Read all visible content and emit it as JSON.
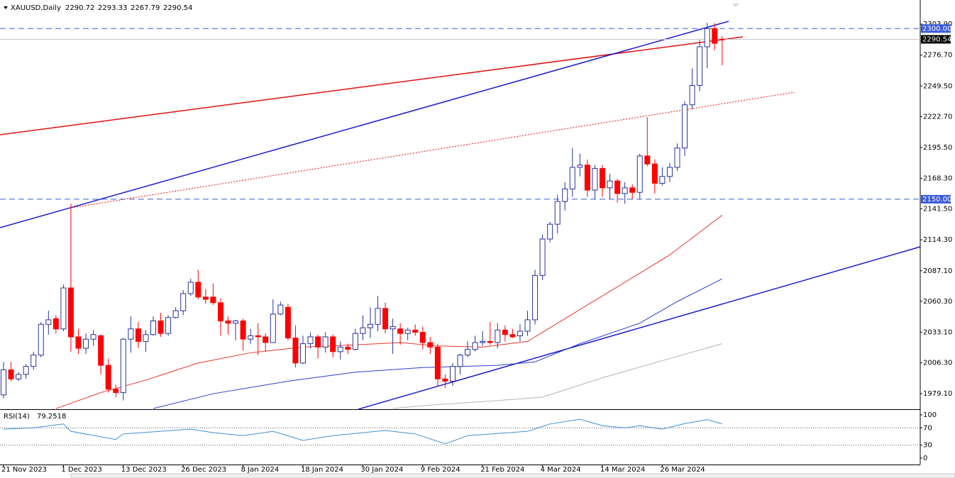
{
  "chart_data": {
    "type": "candlestick",
    "title": "XAUUSD,Daily",
    "categories": [
      "21 Nov 2023",
      null,
      null,
      null,
      null,
      null,
      null,
      null,
      "1 Dec 2023",
      null,
      null,
      null,
      null,
      null,
      null,
      null,
      "13 Dec 2023",
      null,
      null,
      null,
      null,
      null,
      null,
      null,
      "26 Dec 2023",
      null,
      null,
      null,
      null,
      null,
      null,
      null,
      "8 Jan 2024",
      null,
      null,
      null,
      null,
      null,
      null,
      null,
      "18 Jan 2024",
      null,
      null,
      null,
      null,
      null,
      null,
      null,
      "30 Jan 2024",
      null,
      null,
      null,
      null,
      null,
      null,
      null,
      "9 Feb 2024",
      null,
      null,
      null,
      null,
      null,
      null,
      null,
      "21 Feb 2024",
      null,
      null,
      null,
      null,
      null,
      null,
      null,
      "4 Mar 2024",
      null,
      null,
      null,
      null,
      null,
      null,
      null,
      "14 Mar 2024",
      null,
      null,
      null,
      null,
      null,
      null,
      null,
      "26 Mar 2024",
      null,
      null,
      null,
      null,
      null,
      null,
      null,
      null
    ],
    "open": [
      1978,
      2000,
      1992,
      1996,
      2003,
      2013,
      2040,
      2045,
      2036,
      2072,
      2029,
      2019,
      2027,
      2030,
      2004,
      1983,
      1980,
      2027,
      2036,
      2025,
      2031,
      2043,
      2032,
      2046,
      2052,
      2067,
      2077,
      2064,
      2064,
      2059,
      2043,
      2041,
      2043,
      2027,
      2030,
      2029,
      2024,
      2049,
      2055,
      2028,
      2006,
      2023,
      2029,
      2020,
      2029,
      2016,
      2020,
      2018,
      2032,
      2037,
      2040,
      2054,
      2036,
      2036,
      2032,
      2035,
      2033,
      2024,
      2020,
      1992,
      1990,
      2003,
      2013,
      2018,
      2024,
      2025,
      2024,
      2035,
      2031,
      2030,
      2034,
      2044,
      2083,
      2115,
      2128,
      2148,
      2159,
      2178,
      2180,
      2158,
      2177,
      2160,
      2166,
      2155,
      2160,
      2156,
      2188,
      2181,
      2164,
      2170,
      2178,
      2195,
      2233,
      2250,
      2284,
      2300,
      2290.72
    ],
    "high": [
      2007,
      2007,
      1998,
      2005,
      2016,
      2042,
      2052,
      2048,
      2075,
      2146,
      2036,
      2032,
      2035,
      2031,
      2010,
      1987,
      2028,
      2047,
      2042,
      2035,
      2047,
      2050,
      2048,
      2055,
      2070,
      2080,
      2088,
      2071,
      2076,
      2063,
      2047,
      2044,
      2045,
      2036,
      2041,
      2032,
      2062,
      2060,
      2058,
      2039,
      2030,
      2033,
      2031,
      2033,
      2031,
      2025,
      2023,
      2036,
      2048,
      2055,
      2065,
      2059,
      2045,
      2041,
      2037,
      2040,
      2038,
      2029,
      2023,
      1996,
      2006,
      2014,
      2025,
      2030,
      2034,
      2042,
      2041,
      2039,
      2036,
      2040,
      2052,
      2088,
      2119,
      2130,
      2154,
      2165,
      2195,
      2190,
      2185,
      2180,
      2180,
      2172,
      2168,
      2165,
      2163,
      2190,
      2222,
      2185,
      2178,
      2182,
      2199,
      2236,
      2265,
      2290,
      2305,
      2305,
      2293.33
    ],
    "low": [
      1975,
      1990,
      1990,
      1992,
      2000,
      2011,
      2031,
      2032,
      2034,
      2016,
      2014,
      2014,
      2021,
      1996,
      1980,
      1976,
      1973,
      2015,
      2019,
      2016,
      2030,
      2029,
      2030,
      2045,
      2048,
      2065,
      2062,
      2058,
      2057,
      2030,
      2031,
      2026,
      2017,
      2023,
      2013,
      2016,
      2024,
      2048,
      2026,
      2002,
      2005,
      2019,
      2010,
      2015,
      2011,
      2009,
      2014,
      2017,
      2026,
      2028,
      2034,
      2032,
      2014,
      2022,
      2026,
      2030,
      2018,
      2014,
      1985,
      1984,
      1986,
      1996,
      2011,
      2016,
      2021,
      2022,
      2019,
      2025,
      2028,
      2025,
      2030,
      2040,
      2079,
      2112,
      2120,
      2140,
      2152,
      2170,
      2152,
      2150,
      2152,
      2150,
      2147,
      2146,
      2150,
      2150,
      2179,
      2155,
      2162,
      2165,
      2175,
      2188,
      2229,
      2245,
      2265,
      2281,
      2267.79
    ],
    "close": [
      2000,
      1992,
      1996,
      2003,
      2013,
      2040,
      2044,
      2036,
      2072,
      2029,
      2019,
      2027,
      2031,
      2004,
      1983,
      1980,
      2027,
      2036,
      2025,
      2031,
      2043,
      2032,
      2046,
      2052,
      2067,
      2077,
      2064,
      2062,
      2059,
      2043,
      2041,
      2043,
      2027,
      2030,
      2029,
      2024,
      2049,
      2057,
      2028,
      2006,
      2023,
      2029,
      2020,
      2029,
      2016,
      2020,
      2018,
      2032,
      2037,
      2040,
      2054,
      2036,
      2038,
      2032,
      2035,
      2033,
      2024,
      2020,
      1992,
      1990,
      2003,
      2013,
      2018,
      2024,
      2025,
      2024,
      2035,
      2031,
      2029,
      2034,
      2044,
      2083,
      2115,
      2128,
      2148,
      2159,
      2178,
      2180,
      2158,
      2177,
      2160,
      2166,
      2155,
      2160,
      2156,
      2188,
      2181,
      2164,
      2170,
      2178,
      2195,
      2233,
      2250,
      2284,
      2300,
      2287,
      2290.54
    ],
    "bull_color": "#27339a",
    "bear_color": "#ff0000",
    "ylim": [
      1965.4,
      2325.1
    ],
    "yticks": [
      {
        "value": 2303.9,
        "label": "2303.90"
      },
      {
        "value": 2276.7,
        "label": "2276.70"
      },
      {
        "value": 2249.5,
        "label": "2249.50"
      },
      {
        "value": 2222.7,
        "label": "2222.70"
      },
      {
        "value": 2195.5,
        "label": "2195.50"
      },
      {
        "value": 2168.3,
        "label": "2168.30"
      },
      {
        "value": 2141.5,
        "label": "2141.50"
      },
      {
        "value": 2114.3,
        "label": "2114.30"
      },
      {
        "value": 2087.1,
        "label": "2087.10"
      },
      {
        "value": 2060.3,
        "label": "2060.30"
      },
      {
        "value": 2033.1,
        "label": "2033.10"
      },
      {
        "value": 2006.3,
        "label": "2006.30"
      },
      {
        "value": 1979.1,
        "label": "1979.10"
      }
    ],
    "levels": [
      {
        "value": 2300,
        "label": "2300.00"
      },
      {
        "value": 2150,
        "label": "2150.00"
      }
    ],
    "level_color": "#3a5bd9",
    "indicators": [
      {
        "color": "#e8322c",
        "x": [
          7,
          13,
          19,
          26,
          33,
          40,
          47,
          53,
          58,
          64,
          70,
          73,
          78,
          85,
          89,
          96
        ],
        "values": [
          1966,
          1980,
          1991,
          2006,
          2015,
          2020,
          2022,
          2024,
          2021,
          2020,
          2025,
          2037,
          2057,
          2085,
          2101,
          2136
        ]
      },
      {
        "color": "#2a3fc8",
        "x": [
          20,
          28,
          38,
          47,
          56,
          66,
          71,
          77,
          85,
          90,
          96
        ],
        "values": [
          1966,
          1979,
          1990,
          1998,
          2002,
          2004,
          2007,
          2023,
          2041,
          2060,
          2080
        ]
      },
      {
        "color": "#b4b4b4",
        "x": [
          52,
          56,
          66,
          72,
          80,
          89,
          96
        ],
        "values": [
          1966,
          1968.5,
          1973,
          1976,
          1993,
          2010,
          2023
        ]
      }
    ],
    "rsi": {
      "title": "RSI(14)",
      "color": "#3c8fd8",
      "x": [
        0,
        4,
        8,
        9,
        15,
        16,
        25,
        28,
        32,
        36,
        40,
        44,
        51,
        55,
        59,
        62,
        66,
        70,
        73,
        77,
        80,
        83,
        85,
        88,
        91,
        94,
        96
      ],
      "values": [
        67,
        70,
        79,
        62,
        43,
        56,
        67,
        59,
        52,
        62,
        41,
        52,
        64,
        56,
        33,
        52,
        57,
        62,
        79,
        90,
        75,
        70,
        75,
        67,
        80,
        89,
        79.2518
      ],
      "ylim": [
        -14.8,
        111.5
      ],
      "yticks": [
        100,
        70,
        30,
        0
      ],
      "levels": [
        70,
        30
      ]
    }
  }
}
